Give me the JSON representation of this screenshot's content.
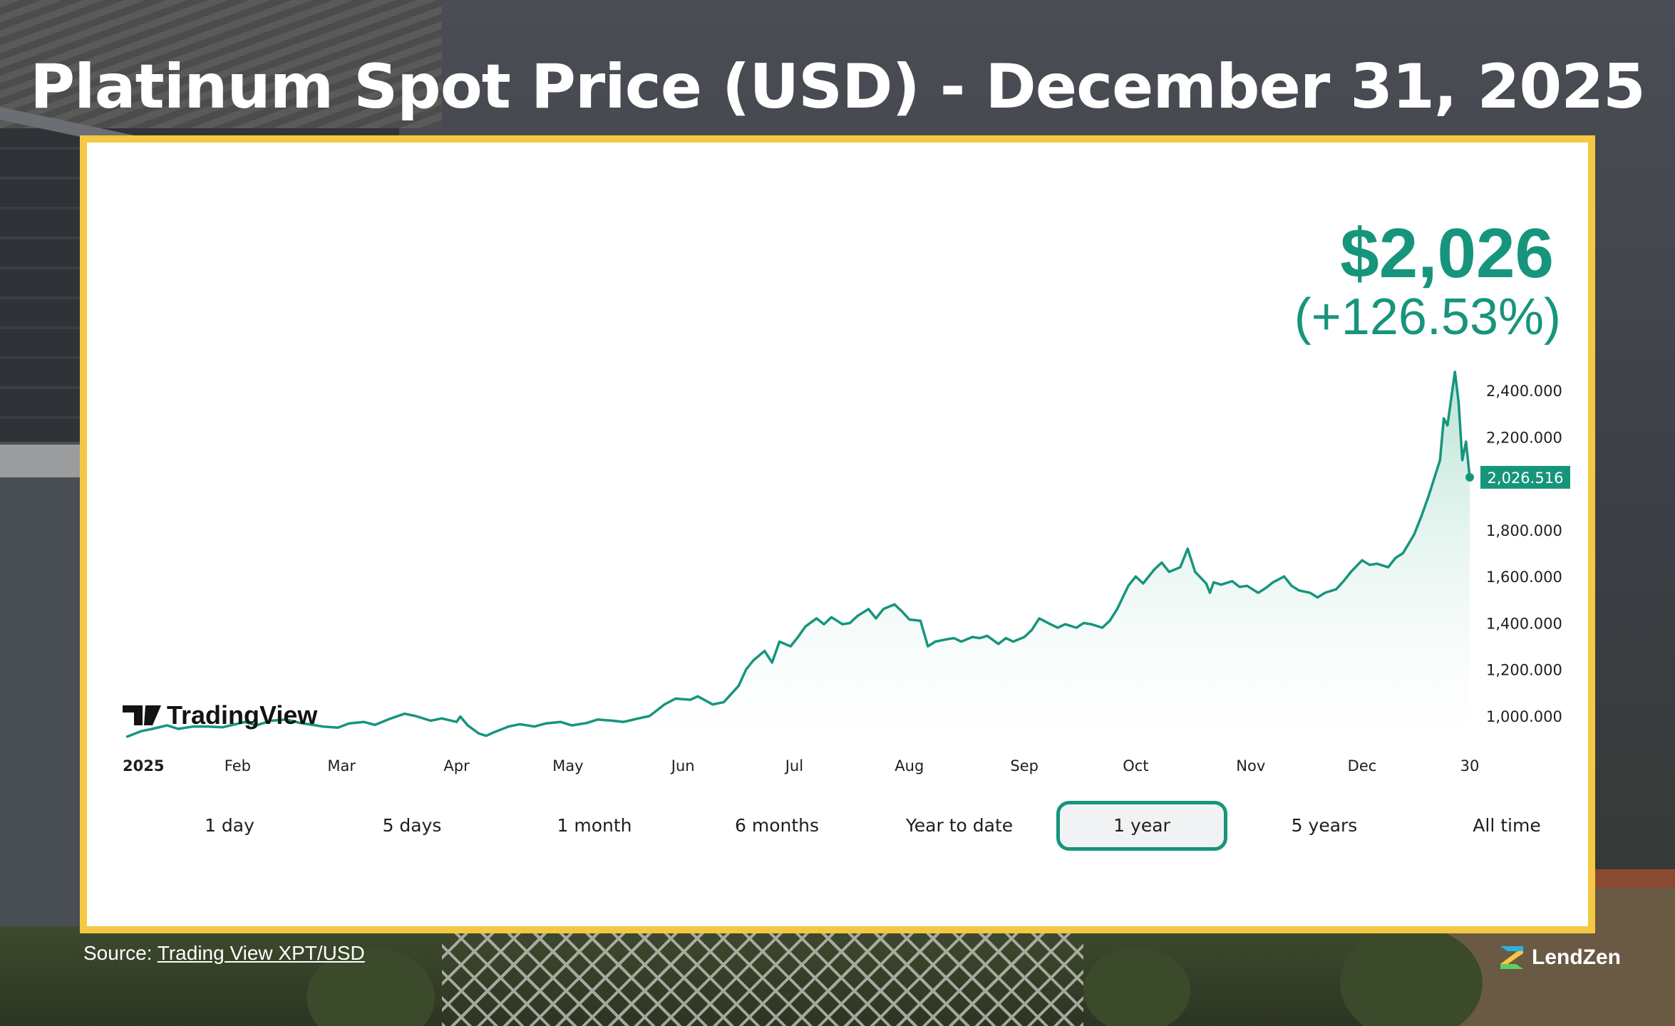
{
  "title": "Platinum Spot Price (USD) - December 31, 2025",
  "price": {
    "value": "$2,026",
    "change": "(+126.53%)"
  },
  "watermark": "TradingView",
  "ranges": [
    "1 day",
    "5 days",
    "1 month",
    "6 months",
    "Year to date",
    "1 year",
    "5 years",
    "All time"
  ],
  "active_range": "1 year",
  "source": {
    "prefix": "Source: ",
    "link_text": "Trading View XPT/USD"
  },
  "brand": {
    "name": "LendZen"
  },
  "colors": {
    "accent": "#16957c",
    "frame": "#f5c843",
    "area_fill": "#d6efe7"
  },
  "chart_data": {
    "type": "area",
    "title": "",
    "xlabel": "",
    "ylabel": "",
    "x_tick_labels": [
      "2025",
      "Feb",
      "Mar",
      "Apr",
      "May",
      "Jun",
      "Jul",
      "Aug",
      "Sep",
      "Oct",
      "Nov",
      "Dec",
      "30"
    ],
    "x_tick_dates": [
      "2025-01-01",
      "2025-02-01",
      "2025-03-01",
      "2025-04-01",
      "2025-05-01",
      "2025-06-01",
      "2025-07-01",
      "2025-08-01",
      "2025-09-01",
      "2025-10-01",
      "2025-11-01",
      "2025-12-01",
      "2025-12-30"
    ],
    "y_ticks": [
      "1,000.000",
      "1,200.000",
      "1,400.000",
      "1,600.000",
      "1,800.000",
      "2,000.000",
      "2,200.000",
      "2,400.000"
    ],
    "y_tick_values": [
      1000,
      1200,
      1400,
      1600,
      1800,
      2000,
      2200,
      2400
    ],
    "ylim": [
      900,
      2480
    ],
    "last_value_label": "2,026.516",
    "grid": false,
    "series": [
      {
        "values": [
          [
            "2025-01-02",
            910
          ],
          [
            "2025-01-06",
            935
          ],
          [
            "2025-01-09",
            945
          ],
          [
            "2025-01-13",
            960
          ],
          [
            "2025-01-16",
            945
          ],
          [
            "2025-01-20",
            955
          ],
          [
            "2025-01-24",
            955
          ],
          [
            "2025-01-28",
            952
          ],
          [
            "2025-02-03",
            975
          ],
          [
            "2025-02-06",
            960
          ],
          [
            "2025-02-10",
            980
          ],
          [
            "2025-02-14",
            985
          ],
          [
            "2025-02-18",
            970
          ],
          [
            "2025-02-24",
            955
          ],
          [
            "2025-02-28",
            950
          ],
          [
            "2025-03-03",
            968
          ],
          [
            "2025-03-07",
            975
          ],
          [
            "2025-03-10",
            962
          ],
          [
            "2025-03-14",
            988
          ],
          [
            "2025-03-18",
            1010
          ],
          [
            "2025-03-21",
            1000
          ],
          [
            "2025-03-25",
            980
          ],
          [
            "2025-03-28",
            990
          ],
          [
            "2025-04-01",
            975
          ],
          [
            "2025-04-02",
            998
          ],
          [
            "2025-04-04",
            960
          ],
          [
            "2025-04-07",
            925
          ],
          [
            "2025-04-09",
            915
          ],
          [
            "2025-04-11",
            930
          ],
          [
            "2025-04-15",
            955
          ],
          [
            "2025-04-18",
            965
          ],
          [
            "2025-04-22",
            955
          ],
          [
            "2025-04-25",
            968
          ],
          [
            "2025-04-29",
            975
          ],
          [
            "2025-05-02",
            960
          ],
          [
            "2025-05-06",
            970
          ],
          [
            "2025-05-09",
            985
          ],
          [
            "2025-05-13",
            980
          ],
          [
            "2025-05-16",
            975
          ],
          [
            "2025-05-20",
            990
          ],
          [
            "2025-05-23",
            1000
          ],
          [
            "2025-05-27",
            1050
          ],
          [
            "2025-05-30",
            1075
          ],
          [
            "2025-06-03",
            1070
          ],
          [
            "2025-06-05",
            1085
          ],
          [
            "2025-06-09",
            1050
          ],
          [
            "2025-06-12",
            1060
          ],
          [
            "2025-06-16",
            1130
          ],
          [
            "2025-06-18",
            1200
          ],
          [
            "2025-06-20",
            1240
          ],
          [
            "2025-06-23",
            1280
          ],
          [
            "2025-06-25",
            1230
          ],
          [
            "2025-06-27",
            1320
          ],
          [
            "2025-06-30",
            1300
          ],
          [
            "2025-07-02",
            1340
          ],
          [
            "2025-07-04",
            1385
          ],
          [
            "2025-07-07",
            1420
          ],
          [
            "2025-07-09",
            1395
          ],
          [
            "2025-07-11",
            1425
          ],
          [
            "2025-07-14",
            1395
          ],
          [
            "2025-07-16",
            1400
          ],
          [
            "2025-07-18",
            1430
          ],
          [
            "2025-07-21",
            1460
          ],
          [
            "2025-07-23",
            1420
          ],
          [
            "2025-07-25",
            1460
          ],
          [
            "2025-07-28",
            1480
          ],
          [
            "2025-07-30",
            1450
          ],
          [
            "2025-08-01",
            1415
          ],
          [
            "2025-08-04",
            1410
          ],
          [
            "2025-08-06",
            1300
          ],
          [
            "2025-08-08",
            1320
          ],
          [
            "2025-08-11",
            1330
          ],
          [
            "2025-08-13",
            1335
          ],
          [
            "2025-08-15",
            1320
          ],
          [
            "2025-08-18",
            1340
          ],
          [
            "2025-08-20",
            1335
          ],
          [
            "2025-08-22",
            1345
          ],
          [
            "2025-08-25",
            1310
          ],
          [
            "2025-08-27",
            1335
          ],
          [
            "2025-08-29",
            1320
          ],
          [
            "2025-09-01",
            1340
          ],
          [
            "2025-09-03",
            1370
          ],
          [
            "2025-09-05",
            1420
          ],
          [
            "2025-09-08",
            1395
          ],
          [
            "2025-09-10",
            1380
          ],
          [
            "2025-09-12",
            1395
          ],
          [
            "2025-09-15",
            1380
          ],
          [
            "2025-09-17",
            1400
          ],
          [
            "2025-09-19",
            1395
          ],
          [
            "2025-09-22",
            1380
          ],
          [
            "2025-09-24",
            1410
          ],
          [
            "2025-09-26",
            1460
          ],
          [
            "2025-09-29",
            1560
          ],
          [
            "2025-10-01",
            1600
          ],
          [
            "2025-10-03",
            1570
          ],
          [
            "2025-10-06",
            1630
          ],
          [
            "2025-10-08",
            1660
          ],
          [
            "2025-10-10",
            1620
          ],
          [
            "2025-10-13",
            1640
          ],
          [
            "2025-10-15",
            1720
          ],
          [
            "2025-10-17",
            1620
          ],
          [
            "2025-10-20",
            1570
          ],
          [
            "2025-10-21",
            1530
          ],
          [
            "2025-10-22",
            1575
          ],
          [
            "2025-10-24",
            1565
          ],
          [
            "2025-10-27",
            1580
          ],
          [
            "2025-10-29",
            1555
          ],
          [
            "2025-10-31",
            1560
          ],
          [
            "2025-11-03",
            1530
          ],
          [
            "2025-11-05",
            1550
          ],
          [
            "2025-11-07",
            1575
          ],
          [
            "2025-11-10",
            1600
          ],
          [
            "2025-11-12",
            1560
          ],
          [
            "2025-11-14",
            1540
          ],
          [
            "2025-11-17",
            1530
          ],
          [
            "2025-11-19",
            1510
          ],
          [
            "2025-11-21",
            1530
          ],
          [
            "2025-11-24",
            1545
          ],
          [
            "2025-11-26",
            1580
          ],
          [
            "2025-11-28",
            1620
          ],
          [
            "2025-12-01",
            1670
          ],
          [
            "2025-12-03",
            1650
          ],
          [
            "2025-12-05",
            1655
          ],
          [
            "2025-12-08",
            1640
          ],
          [
            "2025-12-10",
            1680
          ],
          [
            "2025-12-12",
            1700
          ],
          [
            "2025-12-15",
            1780
          ],
          [
            "2025-12-17",
            1860
          ],
          [
            "2025-12-19",
            1950
          ],
          [
            "2025-12-22",
            2100
          ],
          [
            "2025-12-23",
            2280
          ],
          [
            "2025-12-24",
            2250
          ],
          [
            "2025-12-26",
            2480
          ],
          [
            "2025-12-27",
            2350
          ],
          [
            "2025-12-28",
            2100
          ],
          [
            "2025-12-29",
            2180
          ],
          [
            "2025-12-30",
            2026.516
          ]
        ]
      }
    ]
  }
}
